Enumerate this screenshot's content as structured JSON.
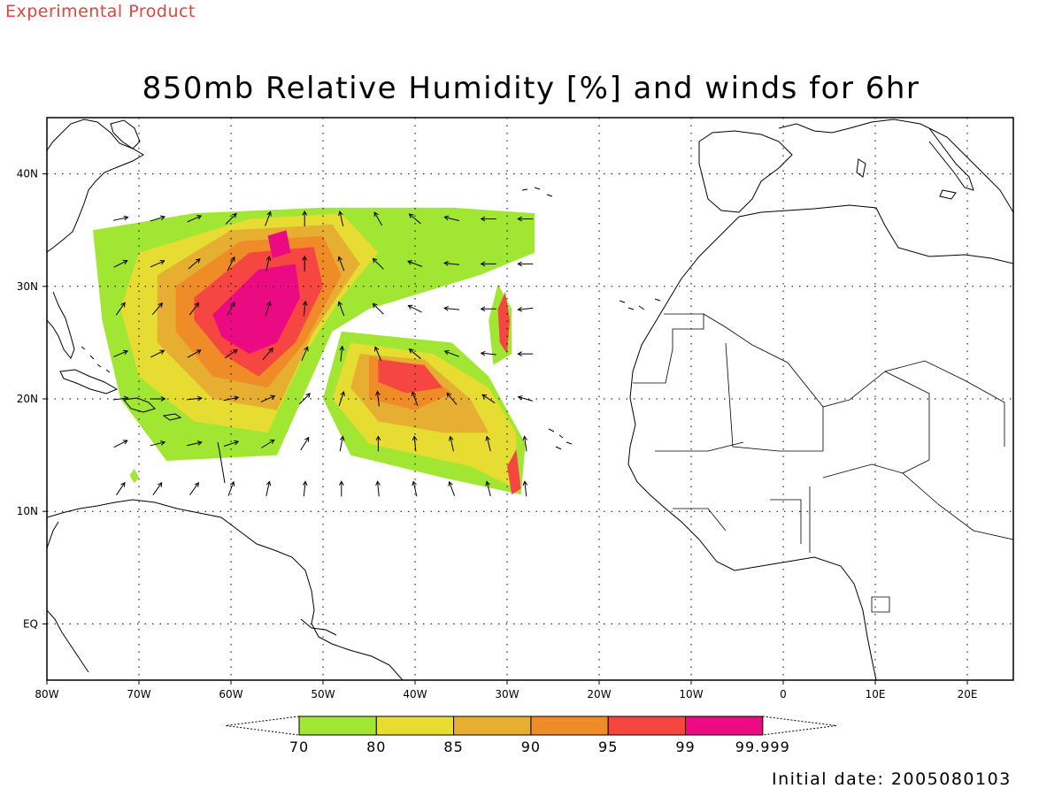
{
  "header": {
    "product_tag": "Experimental Product",
    "title": "850mb Relative Humidity [%] and winds for 6hr",
    "initial_date": "Initial date: 2005080103"
  },
  "map": {
    "lon_range": [
      -80,
      25
    ],
    "lat_range": [
      -5,
      45
    ],
    "lon_ticks": [
      {
        "value": -80,
        "label": "80W"
      },
      {
        "value": -70,
        "label": "70W"
      },
      {
        "value": -60,
        "label": "60W"
      },
      {
        "value": -50,
        "label": "50W"
      },
      {
        "value": -40,
        "label": "40W"
      },
      {
        "value": -30,
        "label": "30W"
      },
      {
        "value": -20,
        "label": "20W"
      },
      {
        "value": -10,
        "label": "10W"
      },
      {
        "value": 0,
        "label": "0"
      },
      {
        "value": 10,
        "label": "10E"
      },
      {
        "value": 20,
        "label": "20E"
      }
    ],
    "lat_ticks": [
      {
        "value": 40,
        "label": "40N"
      },
      {
        "value": 30,
        "label": "30N"
      },
      {
        "value": 20,
        "label": "20N"
      },
      {
        "value": 10,
        "label": "10N"
      },
      {
        "value": 0,
        "label": "EQ"
      }
    ],
    "gridlines": "dotted",
    "humidity_fields": [
      {
        "level": 70,
        "color": "#a0e632",
        "regions": [
          [
            [
              -75,
              35
            ],
            [
              -64,
              36.5
            ],
            [
              -50,
              37
            ],
            [
              -36,
              37
            ],
            [
              -27,
              36.5
            ],
            [
              -27,
              33
            ],
            [
              -33,
              31
            ],
            [
              -45,
              28
            ],
            [
              -49,
              26
            ],
            [
              -55,
              15
            ],
            [
              -67,
              14.5
            ],
            [
              -72,
              20
            ],
            [
              -74,
              27
            ]
          ],
          [
            [
              -48,
              26
            ],
            [
              -36,
              25
            ],
            [
              -32,
              22
            ],
            [
              -30,
              19
            ],
            [
              -28,
              16
            ],
            [
              -28.5,
              11.5
            ],
            [
              -37,
              13
            ],
            [
              -47,
              15
            ],
            [
              -50,
              20
            ]
          ],
          [
            [
              -31,
              30.2
            ],
            [
              -29.5,
              28
            ],
            [
              -29.5,
              24
            ],
            [
              -31.5,
              23
            ],
            [
              -32,
              27
            ]
          ],
          [
            [
              -70.5,
              13.8
            ],
            [
              -70,
              13
            ],
            [
              -70.5,
              12.5
            ],
            [
              -71,
              13.2
            ]
          ]
        ]
      },
      {
        "level": 80,
        "color": "#e6dc32",
        "regions": [
          [
            [
              -70,
              33
            ],
            [
              -58,
              36
            ],
            [
              -48,
              36.5
            ],
            [
              -44,
              33
            ],
            [
              -48,
              29
            ],
            [
              -52,
              24
            ],
            [
              -56,
              17
            ],
            [
              -64,
              18
            ],
            [
              -70,
              22
            ],
            [
              -72,
              28
            ]
          ],
          [
            [
              -47,
              25
            ],
            [
              -38,
              24
            ],
            [
              -32,
              21
            ],
            [
              -29,
              17
            ],
            [
              -29,
              12
            ],
            [
              -34,
              14
            ],
            [
              -45,
              16
            ],
            [
              -49,
              20
            ]
          ]
        ]
      },
      {
        "level": 85,
        "color": "#e6af32",
        "regions": [
          [
            [
              -68,
              31
            ],
            [
              -60,
              35
            ],
            [
              -49,
              35.5
            ],
            [
              -46,
              32
            ],
            [
              -51,
              26
            ],
            [
              -55,
              19
            ],
            [
              -62,
              20
            ],
            [
              -68,
              25
            ]
          ],
          [
            [
              -46,
              24
            ],
            [
              -39,
              23.5
            ],
            [
              -34,
              20
            ],
            [
              -32,
              17
            ],
            [
              -37,
              17
            ],
            [
              -44,
              18
            ],
            [
              -47,
              21
            ]
          ]
        ]
      },
      {
        "level": 90,
        "color": "#f08c28",
        "regions": [
          [
            [
              -66,
              30
            ],
            [
              -59,
              34
            ],
            [
              -50,
              34.5
            ],
            [
              -48,
              31
            ],
            [
              -52,
              25
            ],
            [
              -56,
              21
            ],
            [
              -62,
              22
            ],
            [
              -66,
              26
            ]
          ],
          [
            [
              -45,
              23.8
            ],
            [
              -40,
              23
            ],
            [
              -36,
              20.5
            ],
            [
              -40,
              19
            ],
            [
              -45,
              20
            ]
          ]
        ]
      },
      {
        "level": 95,
        "color": "#f54641",
        "regions": [
          [
            [
              -64,
              29
            ],
            [
              -58,
              33
            ],
            [
              -51,
              33.5
            ],
            [
              -50,
              30
            ],
            [
              -53,
              25
            ],
            [
              -57,
              22
            ],
            [
              -61,
              24
            ],
            [
              -64,
              27
            ]
          ],
          [
            [
              -44,
              23.5
            ],
            [
              -39,
              23
            ],
            [
              -37,
              21
            ],
            [
              -41,
              20.5
            ],
            [
              -44,
              21.5
            ]
          ],
          [
            [
              -30.2,
              29.5
            ],
            [
              -29.7,
              27
            ],
            [
              -30,
              24
            ],
            [
              -30.8,
              25
            ],
            [
              -31,
              28
            ]
          ],
          [
            [
              -29,
              15.5
            ],
            [
              -28.5,
              12
            ],
            [
              -29.5,
              11.5
            ],
            [
              -30,
              14
            ]
          ]
        ]
      },
      {
        "level": 99,
        "color": "#ec0a82",
        "regions": [
          [
            [
              -62,
              27.5
            ],
            [
              -57,
              31.5
            ],
            [
              -53,
              32
            ],
            [
              -52.5,
              29
            ],
            [
              -55,
              25
            ],
            [
              -58,
              24
            ],
            [
              -61,
              25.5
            ]
          ],
          [
            [
              -56,
              34.5
            ],
            [
              -54,
              35
            ],
            [
              -53.5,
              33
            ],
            [
              -55.5,
              32.5
            ]
          ]
        ]
      }
    ],
    "wind_field": {
      "lon_start": -72,
      "lon_step": 4,
      "lat_start": 12,
      "lat_step": 4,
      "nx": 12,
      "ny": 7,
      "u": [
        [
          0.4,
          0.5,
          0.5,
          0.3,
          0.2,
          0.1,
          0.0,
          -0.1,
          -0.2,
          -0.3,
          -0.2,
          -0.1
        ],
        [
          0.6,
          0.8,
          0.9,
          0.9,
          0.8,
          0.5,
          0.2,
          0.0,
          -0.1,
          -0.2,
          -0.2,
          -0.1
        ],
        [
          0.8,
          0.9,
          1.0,
          1.0,
          0.9,
          0.7,
          0.3,
          -0.1,
          -0.3,
          -0.5,
          -0.6,
          -0.7
        ],
        [
          0.7,
          0.8,
          0.9,
          0.9,
          0.7,
          0.4,
          0.1,
          -0.3,
          -0.6,
          -0.8,
          -0.9,
          -1.0
        ],
        [
          0.5,
          0.6,
          0.6,
          0.5,
          0.3,
          0.1,
          -0.3,
          -0.6,
          -0.8,
          -1.0,
          -1.0,
          -1.0
        ],
        [
          0.8,
          0.9,
          0.7,
          0.4,
          0.2,
          0.0,
          -0.3,
          -0.6,
          -0.8,
          -0.9,
          -1.0,
          -1.0
        ],
        [
          0.9,
          1.0,
          0.9,
          0.6,
          0.3,
          0.0,
          -0.2,
          -0.4,
          -0.6,
          -0.8,
          -0.9,
          -1.0
        ]
      ],
      "v": [
        [
          0.6,
          0.7,
          0.7,
          0.8,
          0.9,
          0.9,
          1.0,
          1.0,
          0.9,
          0.8,
          0.8,
          0.9
        ],
        [
          0.3,
          0.2,
          0.2,
          0.3,
          0.5,
          0.8,
          1.0,
          1.0,
          1.0,
          0.9,
          0.8,
          0.7
        ],
        [
          0.1,
          0.0,
          0.1,
          0.2,
          0.4,
          0.7,
          0.9,
          0.9,
          0.8,
          0.6,
          0.4,
          0.2
        ],
        [
          0.3,
          0.4,
          0.5,
          0.6,
          0.8,
          0.9,
          0.9,
          0.7,
          0.5,
          0.3,
          0.1,
          0.0
        ],
        [
          0.7,
          0.7,
          0.8,
          0.9,
          0.9,
          0.9,
          0.8,
          0.6,
          0.4,
          0.1,
          0.0,
          -0.1
        ],
        [
          0.4,
          0.4,
          0.6,
          0.8,
          0.9,
          0.9,
          0.8,
          0.6,
          0.3,
          0.1,
          0.0,
          0.0
        ],
        [
          0.2,
          0.3,
          0.4,
          0.6,
          0.8,
          0.9,
          0.9,
          0.7,
          0.5,
          0.2,
          0.0,
          0.0
        ]
      ]
    }
  },
  "colorbar": {
    "levels": [
      {
        "label": "70",
        "color": "#a0e632"
      },
      {
        "label": "80",
        "color": "#e6dc32"
      },
      {
        "label": "85",
        "color": "#e6af32"
      },
      {
        "label": "90",
        "color": "#f08c28"
      },
      {
        "label": "95",
        "color": "#f54641"
      },
      {
        "label": "99",
        "color": "#ec0a82"
      },
      {
        "label": "99.999",
        "color": ""
      }
    ]
  }
}
